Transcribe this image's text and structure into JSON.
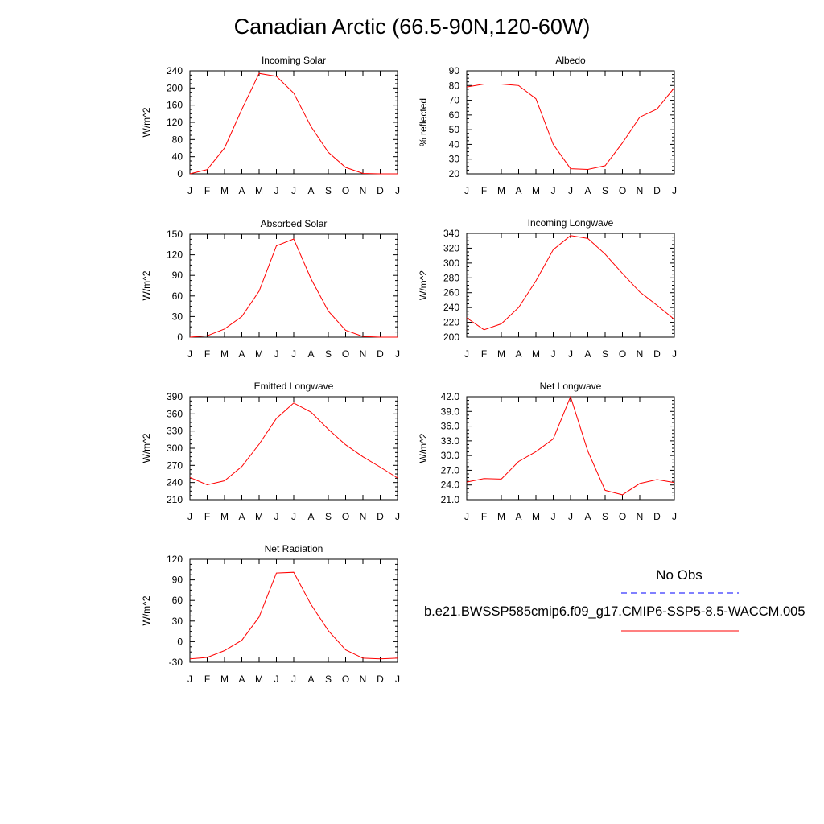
{
  "title": "Canadian Arctic (66.5-90N,120-60W)",
  "legend": {
    "obs_label": "No Obs",
    "obs_color": "#0000ff",
    "model_label": "b.e21.BWSSP585cmip6.f09_g17.CMIP6-SSP5-8.5-WACCM.005",
    "model_color": "#ff0000"
  },
  "chart_data": [
    {
      "type": "line",
      "title": "Incoming Solar",
      "ylabel": "W/m^2",
      "categories": [
        "J",
        "F",
        "M",
        "A",
        "M",
        "J",
        "J",
        "A",
        "S",
        "O",
        "N",
        "D",
        "J"
      ],
      "ylim": [
        0,
        240
      ],
      "yticks": [
        "0",
        "40",
        "80",
        "120",
        "160",
        "200",
        "240"
      ],
      "series": [
        {
          "values": [
            0,
            10,
            60,
            150,
            234,
            227,
            188,
            110,
            50,
            15,
            1,
            0,
            0
          ]
        }
      ]
    },
    {
      "type": "line",
      "title": "Albedo",
      "ylabel": "% reflected",
      "categories": [
        "J",
        "F",
        "M",
        "A",
        "M",
        "J",
        "J",
        "A",
        "S",
        "O",
        "N",
        "D",
        "J"
      ],
      "ylim": [
        20,
        90
      ],
      "yticks": [
        "20",
        "30",
        "40",
        "50",
        "60",
        "70",
        "80",
        "90"
      ],
      "series": [
        {
          "values": [
            79,
            81,
            81,
            80,
            71,
            40,
            23.5,
            23,
            25.5,
            41,
            58.5,
            64,
            78.5
          ]
        }
      ]
    },
    {
      "type": "line",
      "title": "Absorbed Solar",
      "ylabel": "W/m^2",
      "categories": [
        "J",
        "F",
        "M",
        "A",
        "M",
        "J",
        "J",
        "A",
        "S",
        "O",
        "N",
        "D",
        "J"
      ],
      "ylim": [
        0,
        150
      ],
      "yticks": [
        "0",
        "30",
        "60",
        "90",
        "120",
        "150"
      ],
      "series": [
        {
          "values": [
            0,
            2,
            12,
            30,
            67,
            133,
            143,
            85,
            38,
            10,
            1,
            0,
            0
          ]
        }
      ]
    },
    {
      "type": "line",
      "title": "Incoming Longwave",
      "ylabel": "W/m^2",
      "categories": [
        "J",
        "F",
        "M",
        "A",
        "M",
        "J",
        "J",
        "A",
        "S",
        "O",
        "N",
        "D",
        "J"
      ],
      "ylim": [
        200,
        340
      ],
      "yticks": [
        "200",
        "220",
        "240",
        "260",
        "280",
        "300",
        "320",
        "340"
      ],
      "series": [
        {
          "values": [
            226,
            210,
            218,
            240,
            276,
            318,
            337,
            333,
            312,
            286,
            261,
            243,
            224
          ]
        }
      ]
    },
    {
      "type": "line",
      "title": "Emitted Longwave",
      "ylabel": "W/m^2",
      "categories": [
        "J",
        "F",
        "M",
        "A",
        "M",
        "J",
        "J",
        "A",
        "S",
        "O",
        "N",
        "D",
        "J"
      ],
      "ylim": [
        210,
        390
      ],
      "yticks": [
        "210",
        "240",
        "270",
        "300",
        "330",
        "360",
        "390"
      ],
      "series": [
        {
          "values": [
            249,
            236,
            243,
            268,
            307,
            352,
            379,
            363,
            333,
            306,
            285,
            267,
            248
          ]
        }
      ]
    },
    {
      "type": "line",
      "title": "Net Longwave",
      "ylabel": "W/m^2",
      "categories": [
        "J",
        "F",
        "M",
        "A",
        "M",
        "J",
        "J",
        "A",
        "S",
        "O",
        "N",
        "D",
        "J"
      ],
      "ylim": [
        21,
        42
      ],
      "yticks": [
        "21.0",
        "24.0",
        "27.0",
        "30.0",
        "33.0",
        "36.0",
        "39.0",
        "42.0"
      ],
      "series": [
        {
          "values": [
            24.6,
            25.3,
            25.2,
            28.8,
            30.8,
            33.4,
            42.0,
            30.9,
            22.9,
            22.0,
            24.3,
            25.1,
            24.5
          ]
        }
      ]
    },
    {
      "type": "line",
      "title": "Net Radiation",
      "ylabel": "W/m^2",
      "categories": [
        "J",
        "F",
        "M",
        "A",
        "M",
        "J",
        "J",
        "A",
        "S",
        "O",
        "N",
        "D",
        "J"
      ],
      "ylim": [
        -30,
        120
      ],
      "yticks": [
        "-30",
        "0",
        "30",
        "60",
        "90",
        "120"
      ],
      "series": [
        {
          "values": [
            -25,
            -23,
            -13,
            2,
            36,
            100,
            101,
            54,
            16,
            -12,
            -24,
            -25,
            -24
          ]
        }
      ]
    }
  ]
}
